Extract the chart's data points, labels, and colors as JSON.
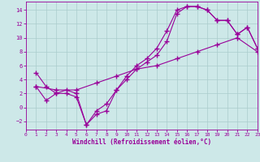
{
  "bg_color": "#cde8e8",
  "line_color": "#990099",
  "grid_color": "#aacccc",
  "xlabel": "Windchill (Refroidissement éolien,°C)",
  "xlim": [
    0,
    23
  ],
  "ylim": [
    -3.2,
    15.2
  ],
  "yticks": [
    -2,
    0,
    2,
    4,
    6,
    8,
    10,
    12,
    14
  ],
  "xticks": [
    0,
    1,
    2,
    3,
    4,
    5,
    6,
    7,
    8,
    9,
    10,
    11,
    12,
    13,
    14,
    15,
    16,
    17,
    18,
    19,
    20,
    21,
    22,
    23
  ],
  "line1_x": [
    1,
    2,
    3,
    4,
    5,
    6,
    7,
    8,
    9,
    10,
    11,
    12,
    13,
    14,
    15,
    16,
    17,
    18,
    19,
    20,
    21,
    22,
    23
  ],
  "line1_y": [
    3.0,
    1.0,
    2.0,
    2.0,
    1.5,
    -2.5,
    -1.0,
    -0.5,
    2.5,
    4.5,
    6.0,
    7.0,
    8.5,
    11.0,
    14.0,
    14.5,
    14.5,
    14.0,
    12.5,
    12.5,
    10.5,
    11.5,
    8.5
  ],
  "line2_x": [
    1,
    2,
    3,
    4,
    5,
    6,
    7,
    8,
    9,
    10,
    11,
    12,
    13,
    14,
    15,
    16,
    17,
    18,
    19,
    20,
    21,
    22,
    23
  ],
  "line2_y": [
    5.0,
    3.0,
    2.0,
    2.5,
    2.0,
    -2.5,
    -0.5,
    0.5,
    2.5,
    4.0,
    5.5,
    6.5,
    7.5,
    9.5,
    13.5,
    14.5,
    14.5,
    14.0,
    12.5,
    12.5,
    10.5,
    11.5,
    8.5
  ],
  "line3_x": [
    1,
    3,
    5,
    7,
    9,
    11,
    13,
    15,
    17,
    19,
    21,
    23
  ],
  "line3_y": [
    3.0,
    2.5,
    2.5,
    3.5,
    4.5,
    5.5,
    6.0,
    7.0,
    8.0,
    9.0,
    10.0,
    8.0
  ]
}
